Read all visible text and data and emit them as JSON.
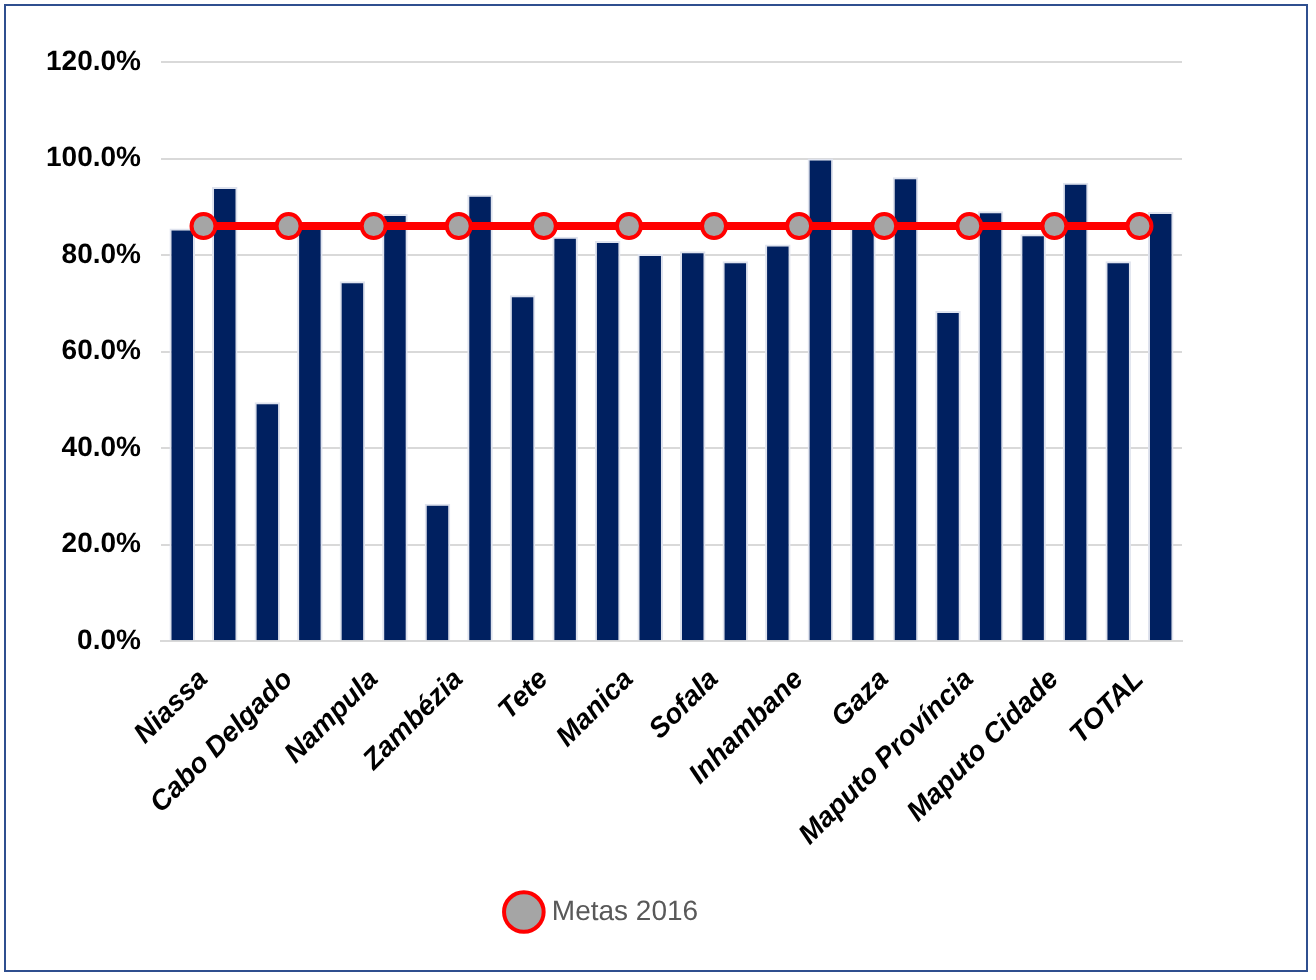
{
  "chart_data": {
    "type": "bar",
    "categories": [
      "Niassa",
      "Cabo Delgado",
      "Nampula",
      "Zambézia",
      "Tete",
      "Manica",
      "Sofala",
      "Inhambane",
      "Gaza",
      "Maputo Província",
      "Maputo Cidade",
      "TOTAL"
    ],
    "series": [
      {
        "color": "#002060",
        "values": [
          85.5,
          49.5,
          74.6,
          28.5,
          71.7,
          82.9,
          80.8,
          82.2,
          86,
          68.4,
          84.3,
          78.7
        ]
      },
      {
        "color": "#002060",
        "values": [
          94.1,
          86,
          88.5,
          92.5,
          83.8,
          80.2,
          78.7,
          100,
          96.1,
          89.1,
          95,
          88.9
        ]
      },
      {
        "name": "Metas 2016",
        "type": "line",
        "color": "#ff0000",
        "marker": "circle",
        "values": [
          86,
          86,
          86,
          86,
          86,
          86,
          86,
          86,
          86,
          86,
          86,
          86
        ]
      }
    ],
    "ylim": [
      0,
      120
    ],
    "yticks": [
      {
        "value": 0,
        "label": "0.0%"
      },
      {
        "value": 20,
        "label": "20.0%"
      },
      {
        "value": 40,
        "label": "40.0%"
      },
      {
        "value": 60,
        "label": "60.0%"
      },
      {
        "value": 80,
        "label": "80.0%"
      },
      {
        "value": 100,
        "label": "100.0%"
      },
      {
        "value": 120,
        "label": "120.0%"
      }
    ],
    "grid": "y",
    "legend": "bottom"
  }
}
